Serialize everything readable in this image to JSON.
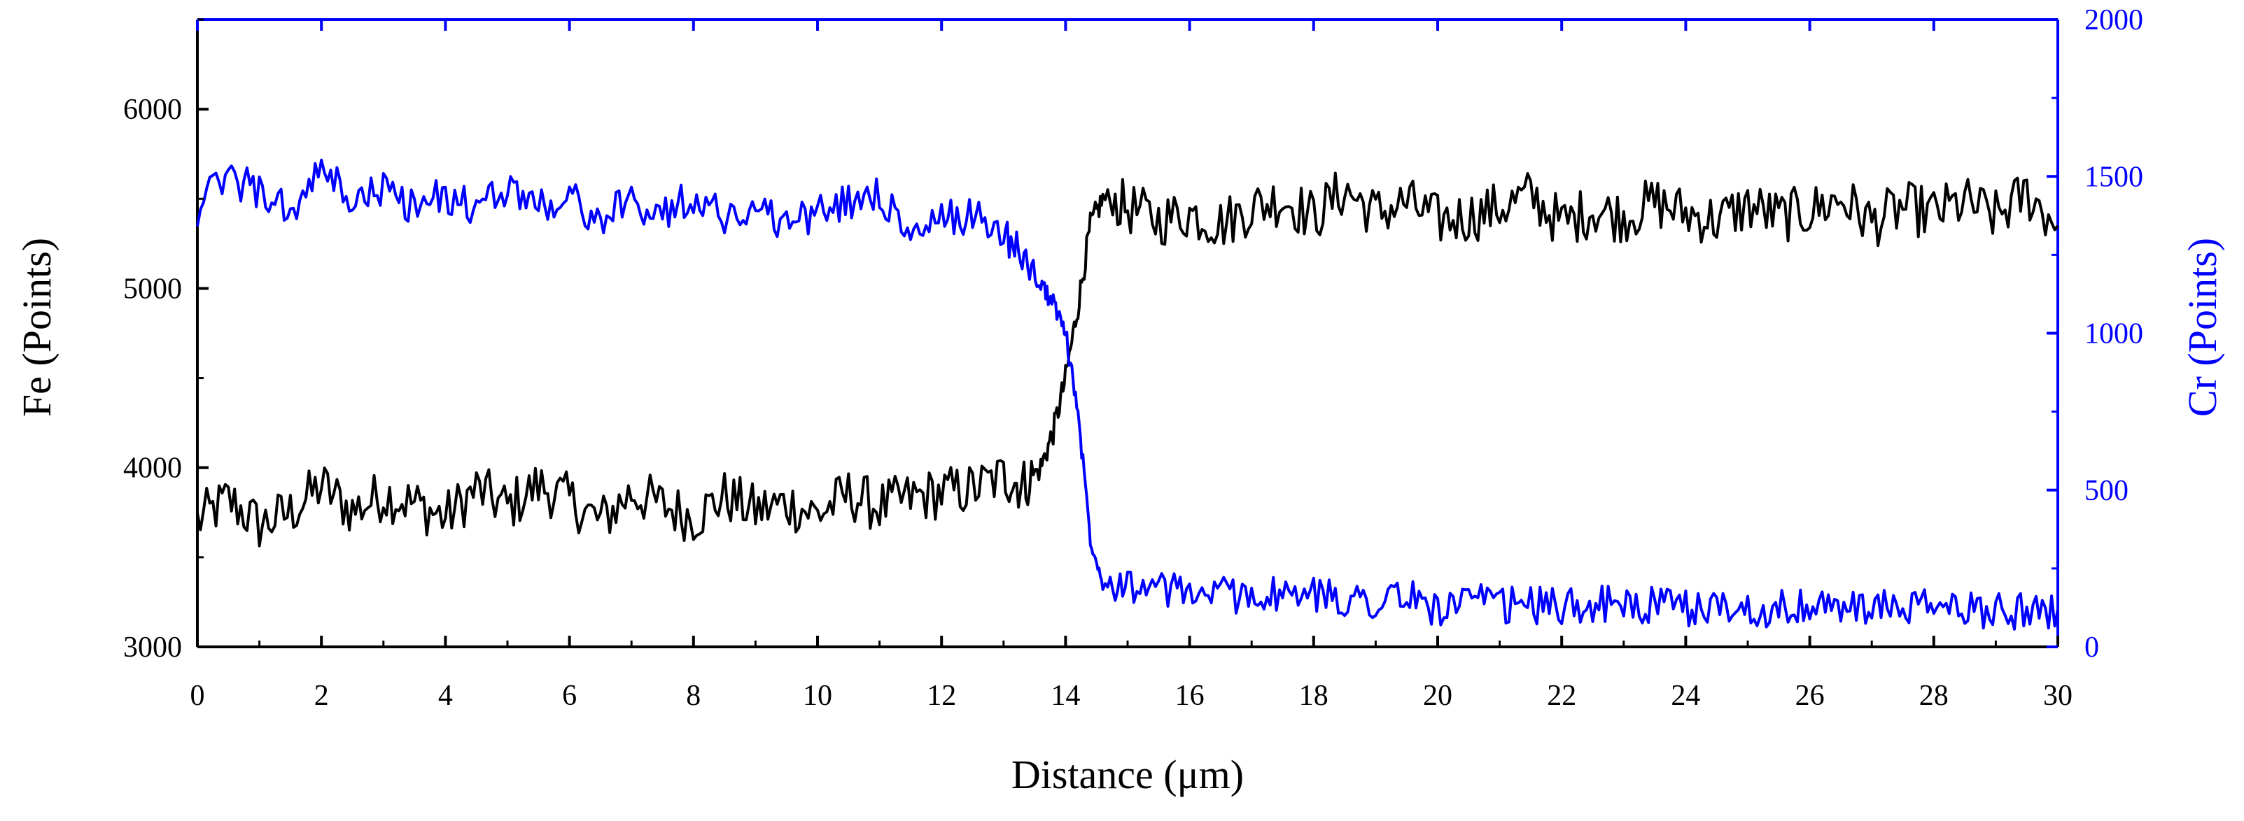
{
  "chart_data": {
    "type": "line",
    "title": "",
    "xlabel": "Distance (μm)",
    "ylabel_left": "Fe (Points)",
    "ylabel_right": "Cr (Points)",
    "xlim": [
      0,
      30
    ],
    "ylim_left": [
      3000,
      6500
    ],
    "ylim_right": [
      0,
      2000
    ],
    "x_ticks": [
      0,
      2,
      4,
      6,
      8,
      10,
      12,
      14,
      16,
      18,
      20,
      22,
      24,
      26,
      28,
      30
    ],
    "x_tick_labels": [
      "0",
      "2",
      "4",
      "6",
      "8",
      "10",
      "12",
      "14",
      "16",
      "18",
      "20",
      "22",
      "24",
      "26",
      "28",
      "30"
    ],
    "y_left_ticks": [
      3000,
      4000,
      5000,
      6000
    ],
    "y_left_tick_labels": [
      "3000",
      "4000",
      "5000",
      "6000"
    ],
    "y_right_ticks": [
      0,
      500,
      1000,
      1500,
      2000
    ],
    "y_right_tick_labels": [
      "0",
      "500",
      "1000",
      "1500",
      "2000"
    ],
    "grid": false,
    "colors": {
      "fe": "#000000",
      "cr": "#0000ff",
      "axis": "#000000",
      "right_axis": "#0000ff"
    },
    "series": [
      {
        "name": "Fe",
        "axis": "left",
        "color": "#000000",
        "x": [
          0,
          0.5,
          1,
          1.5,
          2,
          2.5,
          3,
          3.5,
          4,
          4.5,
          5,
          5.5,
          6,
          6.5,
          7,
          7.5,
          8,
          8.5,
          9,
          9.5,
          10,
          10.5,
          11,
          11.5,
          12,
          12.5,
          13,
          13.3,
          13.6,
          13.8,
          14.0,
          14.2,
          14.4,
          14.6,
          15,
          15.5,
          16,
          16.5,
          17,
          17.5,
          18,
          18.5,
          19,
          19.5,
          20,
          20.5,
          21,
          21.5,
          22,
          22.5,
          23,
          23.5,
          24,
          24.5,
          25,
          25.5,
          26,
          26.5,
          27,
          27.5,
          28,
          28.5,
          29,
          29.5,
          30
        ],
        "values": [
          3700,
          3820,
          3680,
          3750,
          3900,
          3760,
          3850,
          3800,
          3720,
          3880,
          3780,
          3900,
          3820,
          3700,
          3860,
          3790,
          3720,
          3840,
          3760,
          3800,
          3740,
          3850,
          3780,
          3830,
          3860,
          3880,
          3950,
          3900,
          4000,
          4200,
          4500,
          4900,
          5350,
          5500,
          5450,
          5380,
          5420,
          5360,
          5450,
          5500,
          5400,
          5550,
          5420,
          5480,
          5380,
          5400,
          5450,
          5520,
          5360,
          5440,
          5400,
          5480,
          5420,
          5380,
          5460,
          5400,
          5430,
          5500,
          5370,
          5450,
          5420,
          5480,
          5400,
          5530,
          5350
        ]
      },
      {
        "name": "Cr",
        "axis": "right",
        "color": "#0000ff",
        "x": [
          0,
          0.5,
          1,
          1.5,
          2,
          2.5,
          3,
          3.5,
          4,
          4.5,
          5,
          5.5,
          6,
          6.5,
          7,
          7.5,
          8,
          8.5,
          9,
          9.5,
          10,
          10.5,
          11,
          11.5,
          12,
          12.5,
          13,
          13.3,
          13.6,
          13.8,
          14.0,
          14.2,
          14.4,
          14.6,
          15,
          15.5,
          16,
          16.5,
          17,
          17.5,
          18,
          18.5,
          19,
          19.5,
          20,
          20.5,
          21,
          21.5,
          22,
          22.5,
          23,
          23.5,
          24,
          24.5,
          25,
          25.5,
          26,
          26.5,
          27,
          27.5,
          28,
          28.5,
          29,
          29.5,
          30
        ],
        "values": [
          1400,
          1500,
          1450,
          1380,
          1520,
          1420,
          1460,
          1400,
          1440,
          1390,
          1470,
          1410,
          1430,
          1360,
          1420,
          1380,
          1440,
          1370,
          1400,
          1350,
          1380,
          1420,
          1450,
          1300,
          1360,
          1380,
          1320,
          1250,
          1150,
          1100,
          1000,
          750,
          350,
          210,
          200,
          180,
          175,
          165,
          170,
          160,
          165,
          155,
          150,
          160,
          120,
          145,
          130,
          135,
          125,
          140,
          128,
          132,
          120,
          130,
          118,
          125,
          122,
          130,
          118,
          128,
          125,
          120,
          118,
          115,
          120
        ]
      }
    ]
  }
}
